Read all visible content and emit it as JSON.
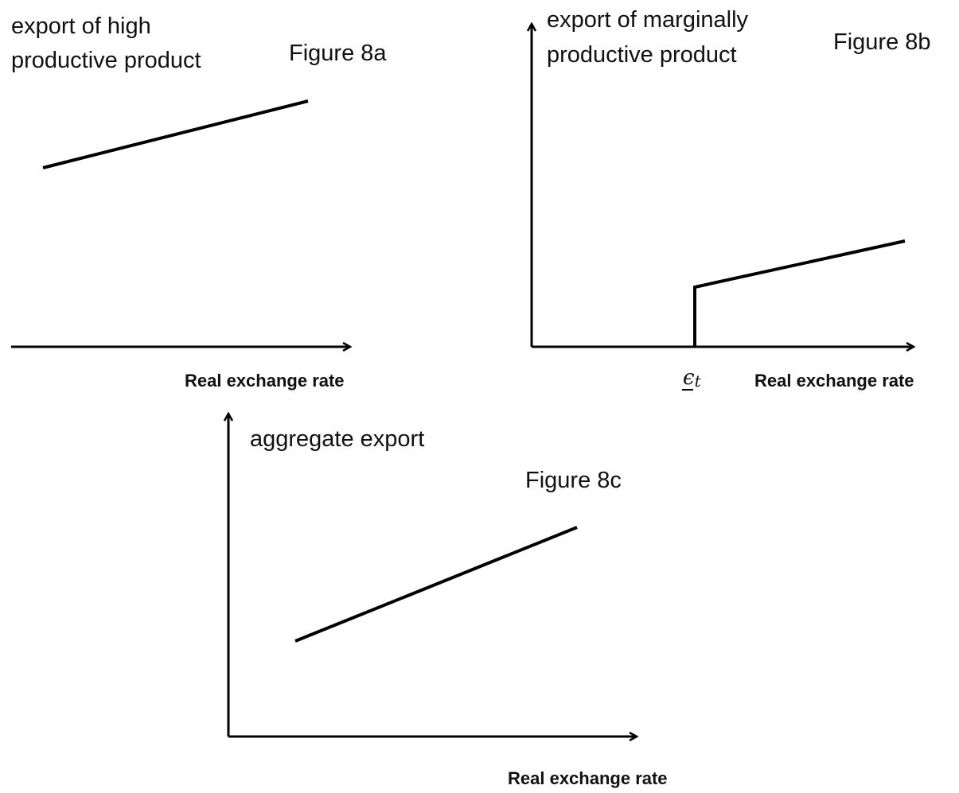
{
  "figure_8a": {
    "title": "Figure 8a",
    "y_label": [
      "export of high",
      "productive product"
    ],
    "x_label": "Real exchange rate"
  },
  "figure_8b": {
    "title": "Figure 8b",
    "y_label": [
      "export of marginally",
      "productive product"
    ],
    "x_label": "Real exchange rate",
    "threshold_label": {
      "symbol": "ϵ",
      "subscript": "t"
    }
  },
  "figure_8c": {
    "title": "Figure 8c",
    "y_label": [
      "aggregate export"
    ],
    "x_label": "Real exchange rate"
  }
}
